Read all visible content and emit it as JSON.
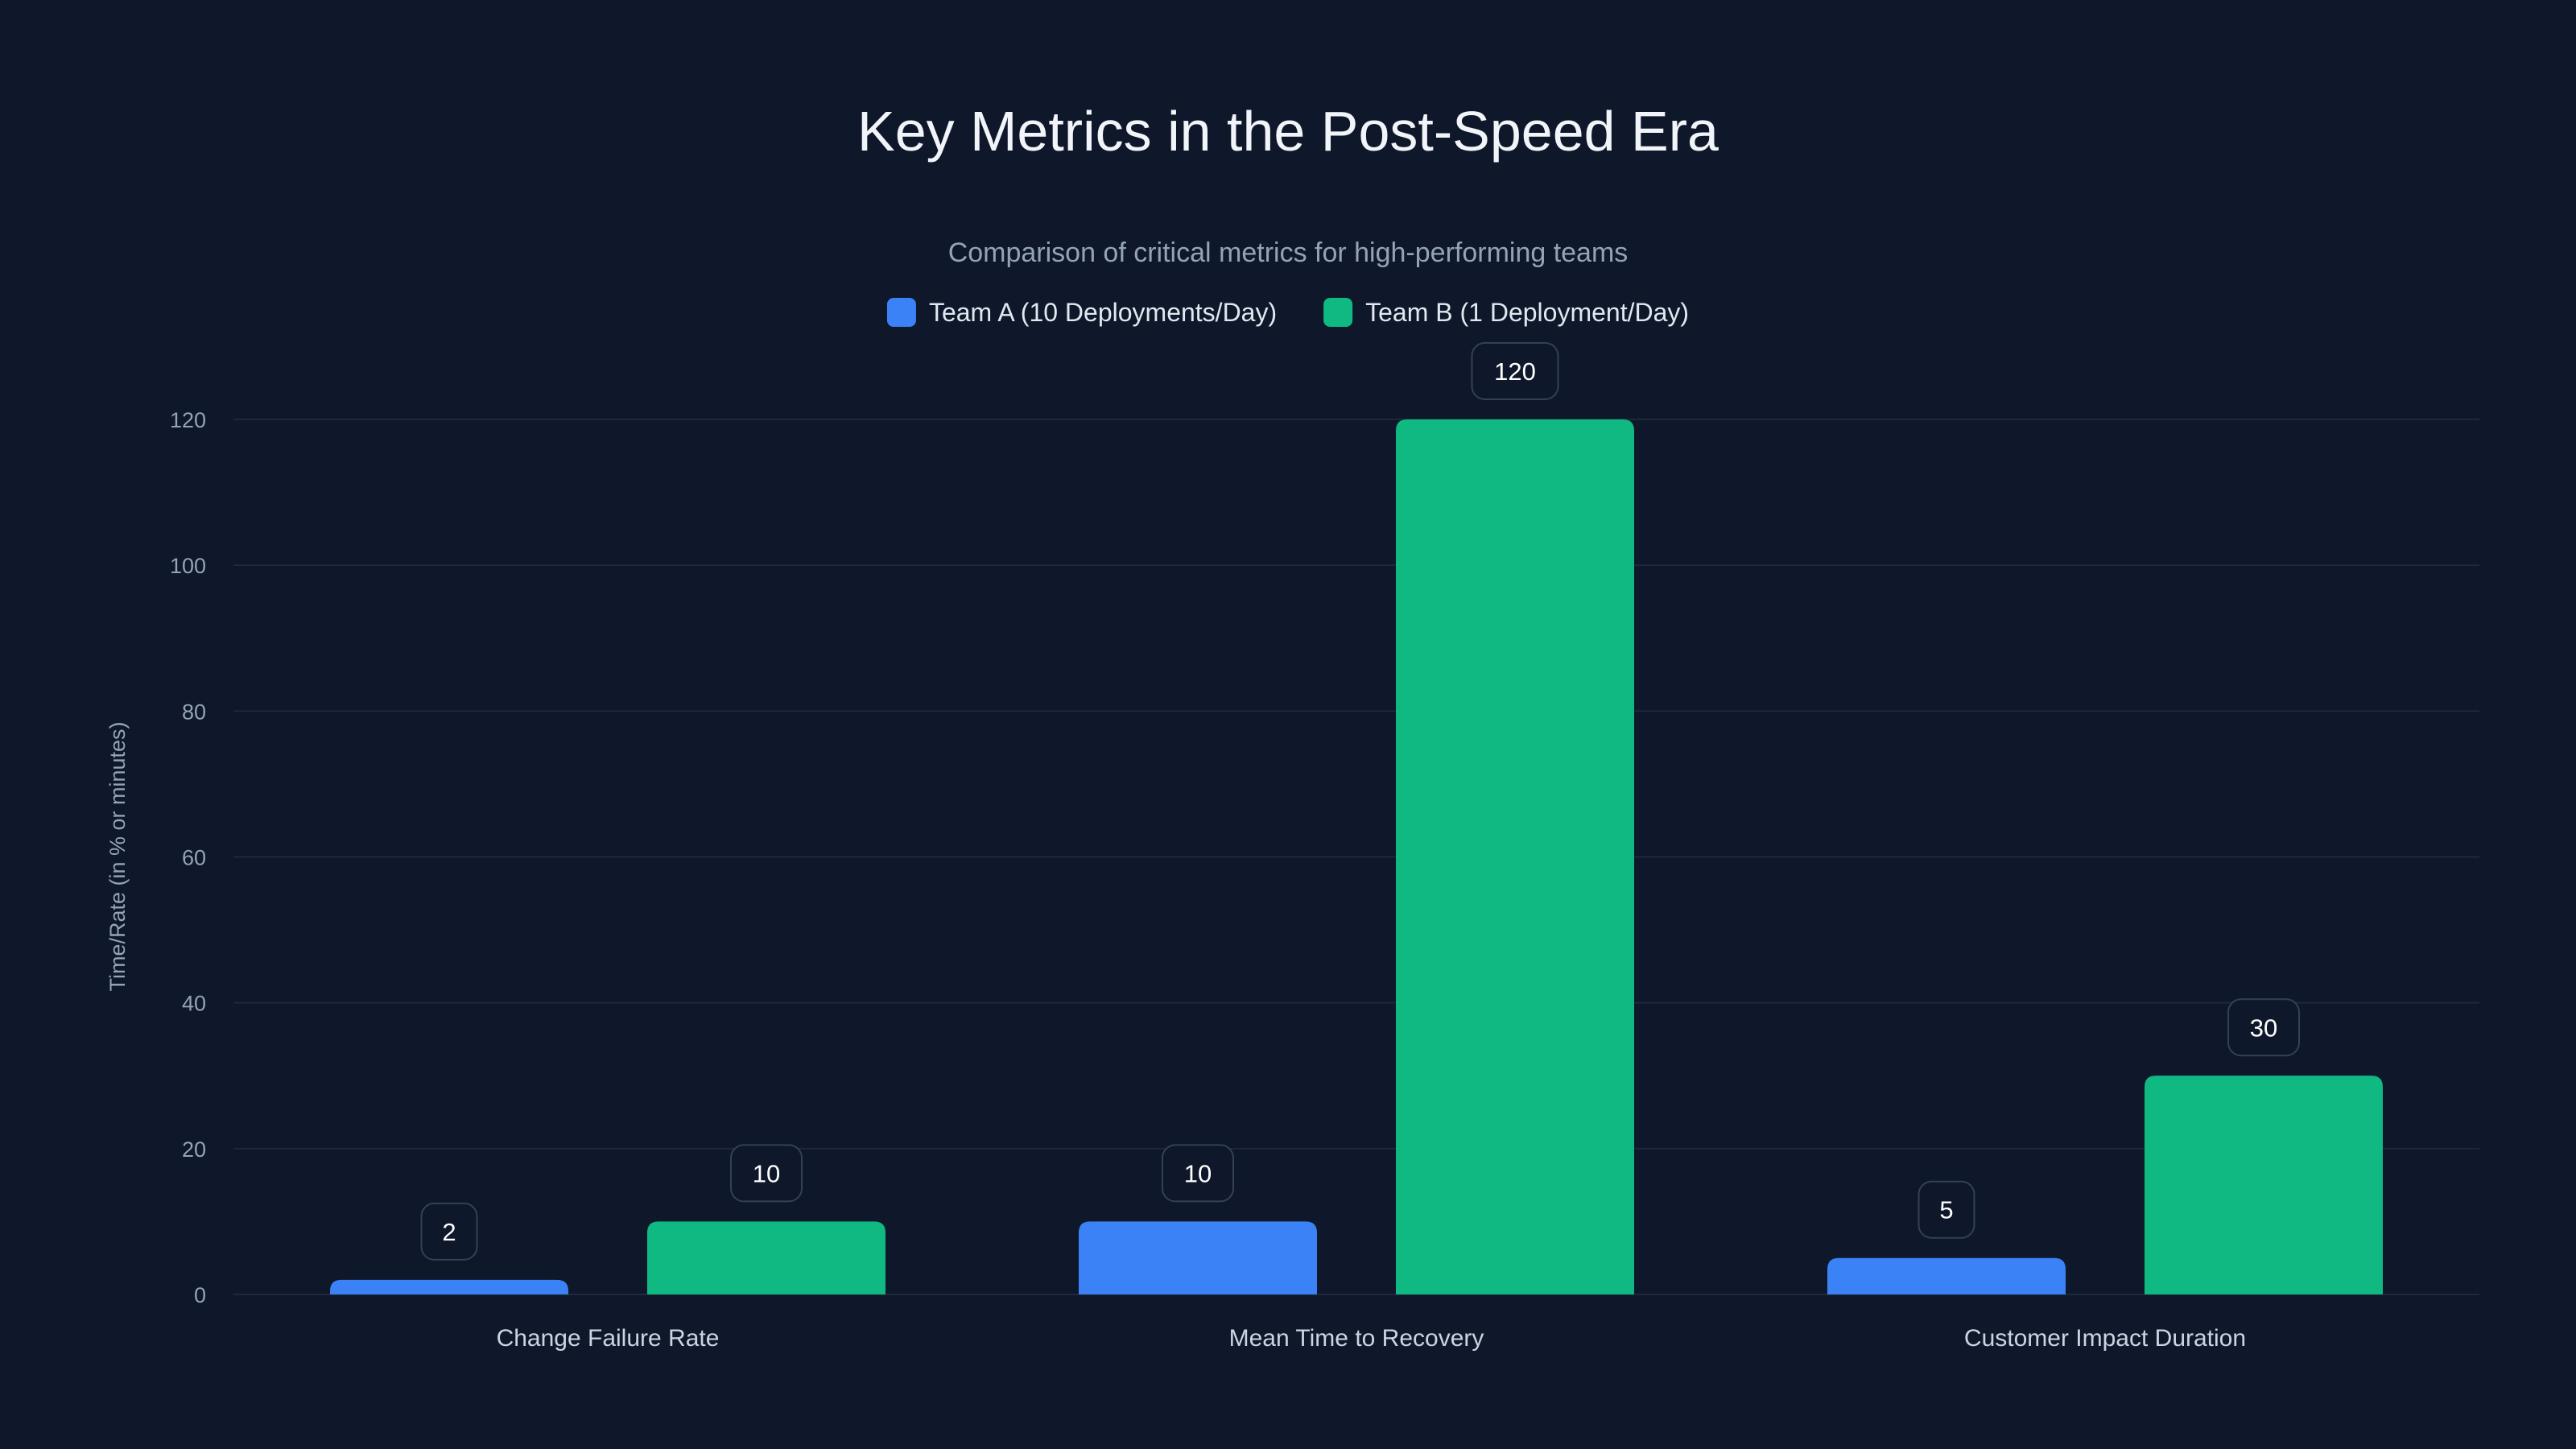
{
  "chart_data": {
    "type": "bar",
    "title": "Key Metrics in the Post-Speed Era",
    "subtitle": "Comparison of critical metrics for high-performing teams",
    "xlabel": "",
    "ylabel": "Time/Rate (in % or minutes)",
    "ylim": [
      0,
      120
    ],
    "yticks": [
      0,
      20,
      40,
      60,
      80,
      100,
      120
    ],
    "grid": true,
    "legend_position": "top-center",
    "categories": [
      "Change Failure Rate",
      "Mean Time to Recovery",
      "Customer Impact Duration"
    ],
    "series": [
      {
        "name": "Team A (10 Deployments/Day)",
        "color": "#3b82f6",
        "values": [
          2,
          10,
          5
        ]
      },
      {
        "name": "Team B (1 Deployment/Day)",
        "color": "#10b981",
        "values": [
          10,
          120,
          30
        ]
      }
    ]
  },
  "colors": {
    "background": "#0f172a",
    "grid": "#1e293b",
    "label_border": "#334155",
    "text": "#f1f5f9",
    "muted": "#94a3b8"
  }
}
